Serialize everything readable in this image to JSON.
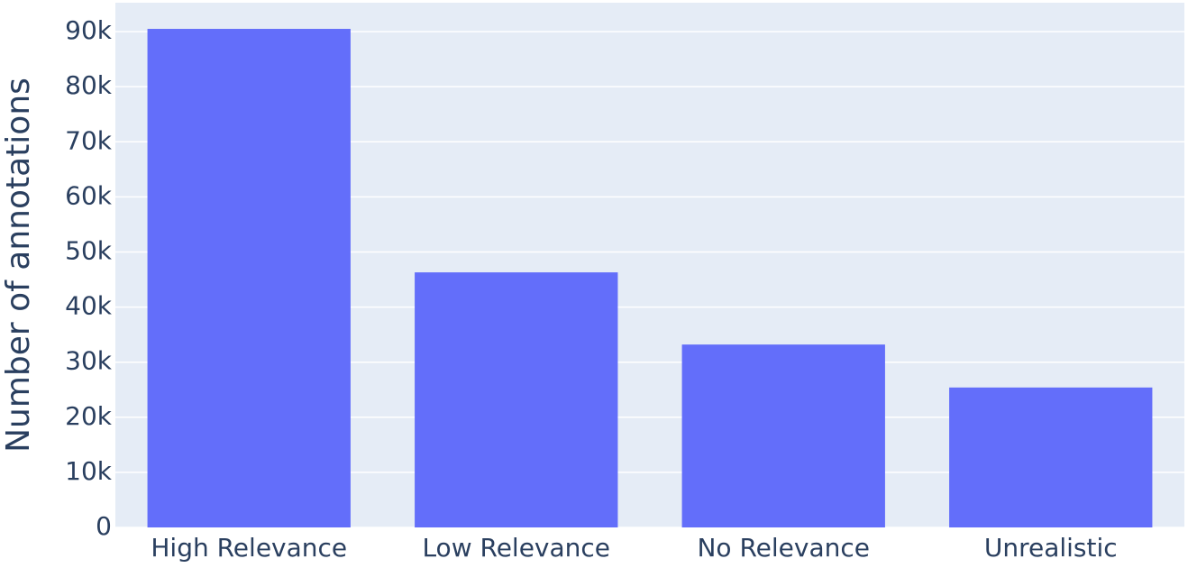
{
  "chart_data": {
    "type": "bar",
    "y_label": "Number of annotations",
    "categories": [
      "High Relevance",
      "Low Relevance",
      "No Relevance",
      "Unrealistic"
    ],
    "values": [
      90500,
      46300,
      33200,
      25400
    ],
    "color": "#636efa",
    "ylim": [
      0,
      95250
    ],
    "yticks": [
      0,
      {
        "value": 10000,
        "label": "10k"
      },
      {
        "value": 20000,
        "label": "20k"
      },
      {
        "value": 30000,
        "label": "30k"
      },
      {
        "value": 40000,
        "label": "40k"
      },
      {
        "value": 50000,
        "label": "50k"
      },
      {
        "value": 60000,
        "label": "60k"
      },
      {
        "value": 70000,
        "label": "70k"
      },
      {
        "value": 80000,
        "label": "80k"
      },
      {
        "value": 90000,
        "label": "90k"
      }
    ],
    "grid": true
  }
}
